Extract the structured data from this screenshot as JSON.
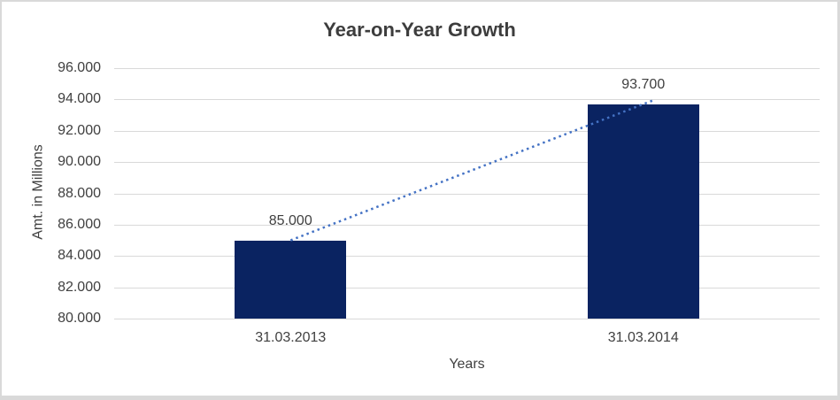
{
  "chart_data": {
    "type": "bar",
    "title": "Year-on-Year Growth",
    "categories": [
      "31.03.2013",
      "31.03.2014"
    ],
    "values": [
      85.0,
      93.7
    ],
    "value_labels": [
      "85.000",
      "93.700"
    ],
    "xlabel": "Years",
    "ylabel": "Amt. in Millions",
    "ylim": [
      80,
      96
    ],
    "ytick_step": 2,
    "ytick_labels": [
      "96.000",
      "94.000",
      "92.000",
      "90.000",
      "88.000",
      "86.000",
      "84.000",
      "82.000",
      "80.000"
    ],
    "grid": true,
    "legend": false,
    "trendline": {
      "type": "linear",
      "style": "dotted"
    }
  },
  "colors": {
    "bar_fill": "#0a2361",
    "trendline": "#4472c4",
    "gridline": "#d9d9d9",
    "axis_line": "#d9d9d9",
    "text": "#404040",
    "title_text": "#3d3d3d",
    "frame_border": "#d9d9d9",
    "background": "#ffffff"
  }
}
